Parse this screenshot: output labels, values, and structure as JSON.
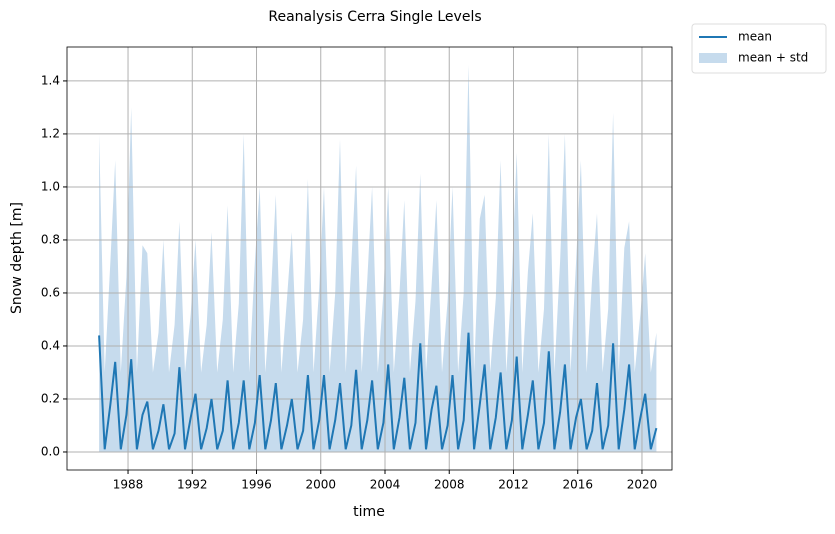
{
  "chart_data": {
    "type": "line",
    "title": "Reanalysis Cerra Single Levels",
    "x_label": "time",
    "y_label": "Snow depth [m]",
    "x": [
      1986.2,
      1986.55,
      1986.9,
      1987.2,
      1987.55,
      1987.9,
      1988.2,
      1988.55,
      1988.9,
      1989.2,
      1989.55,
      1989.9,
      1990.2,
      1990.55,
      1990.9,
      1991.2,
      1991.55,
      1991.9,
      1992.2,
      1992.55,
      1992.9,
      1993.2,
      1993.55,
      1993.9,
      1994.2,
      1994.55,
      1994.9,
      1995.2,
      1995.55,
      1995.9,
      1996.2,
      1996.55,
      1996.9,
      1997.2,
      1997.55,
      1997.9,
      1998.2,
      1998.55,
      1998.9,
      1999.2,
      1999.55,
      1999.9,
      2000.2,
      2000.55,
      2000.9,
      2001.2,
      2001.55,
      2001.9,
      2002.2,
      2002.55,
      2002.9,
      2003.2,
      2003.55,
      2003.9,
      2004.2,
      2004.55,
      2004.9,
      2005.2,
      2005.55,
      2005.9,
      2006.2,
      2006.55,
      2006.9,
      2007.2,
      2007.55,
      2007.9,
      2008.2,
      2008.55,
      2008.9,
      2009.2,
      2009.55,
      2009.9,
      2010.2,
      2010.55,
      2010.9,
      2011.2,
      2011.55,
      2011.9,
      2012.2,
      2012.55,
      2012.9,
      2013.2,
      2013.55,
      2013.9,
      2014.2,
      2014.55,
      2014.9,
      2015.2,
      2015.55,
      2015.9,
      2016.2,
      2016.55,
      2016.9,
      2017.2,
      2017.55,
      2017.9,
      2018.2,
      2018.55,
      2018.9,
      2019.2,
      2019.55,
      2019.9,
      2020.2,
      2020.55,
      2020.9
    ],
    "series": [
      {
        "name": "mean + std",
        "kind": "area",
        "color": "#c6dbed",
        "values": [
          1.2,
          0.3,
          0.72,
          1.1,
          0.3,
          0.66,
          1.3,
          0.3,
          0.78,
          0.75,
          0.3,
          0.45,
          0.8,
          0.3,
          0.48,
          0.87,
          0.3,
          0.52,
          0.8,
          0.3,
          0.48,
          0.83,
          0.3,
          0.5,
          0.93,
          0.3,
          0.56,
          1.2,
          0.3,
          0.72,
          1.0,
          0.3,
          0.6,
          0.97,
          0.3,
          0.58,
          0.83,
          0.3,
          0.5,
          1.03,
          0.3,
          0.62,
          1.0,
          0.3,
          0.6,
          1.18,
          0.3,
          0.71,
          1.08,
          0.3,
          0.65,
          1.0,
          0.3,
          0.6,
          1.0,
          0.3,
          0.6,
          0.95,
          0.3,
          0.57,
          1.05,
          0.3,
          0.63,
          0.95,
          0.3,
          0.57,
          1.0,
          0.3,
          0.6,
          1.46,
          0.3,
          0.88,
          0.97,
          0.3,
          0.58,
          1.1,
          0.3,
          0.66,
          1.13,
          0.3,
          0.68,
          0.9,
          0.3,
          0.54,
          1.2,
          0.3,
          0.72,
          1.2,
          0.3,
          0.72,
          1.1,
          0.3,
          0.66,
          0.9,
          0.3,
          0.54,
          1.28,
          0.3,
          0.77,
          0.87,
          0.3,
          0.52,
          0.75,
          0.3,
          0.45
        ]
      },
      {
        "name": "mean",
        "kind": "line",
        "color": "#1f77b4",
        "values": [
          0.44,
          0.01,
          0.18,
          0.34,
          0.01,
          0.14,
          0.35,
          0.01,
          0.14,
          0.19,
          0.01,
          0.08,
          0.18,
          0.01,
          0.07,
          0.32,
          0.01,
          0.13,
          0.22,
          0.01,
          0.09,
          0.2,
          0.01,
          0.08,
          0.27,
          0.01,
          0.11,
          0.27,
          0.01,
          0.11,
          0.29,
          0.01,
          0.12,
          0.26,
          0.01,
          0.1,
          0.2,
          0.01,
          0.08,
          0.29,
          0.01,
          0.12,
          0.29,
          0.01,
          0.12,
          0.26,
          0.01,
          0.1,
          0.31,
          0.01,
          0.12,
          0.27,
          0.01,
          0.11,
          0.33,
          0.01,
          0.13,
          0.28,
          0.01,
          0.11,
          0.41,
          0.01,
          0.16,
          0.25,
          0.01,
          0.1,
          0.29,
          0.01,
          0.12,
          0.45,
          0.01,
          0.18,
          0.33,
          0.01,
          0.13,
          0.3,
          0.01,
          0.12,
          0.36,
          0.01,
          0.14,
          0.27,
          0.01,
          0.11,
          0.38,
          0.01,
          0.15,
          0.33,
          0.01,
          0.13,
          0.2,
          0.01,
          0.08,
          0.26,
          0.01,
          0.1,
          0.41,
          0.01,
          0.16,
          0.33,
          0.01,
          0.13,
          0.22,
          0.01,
          0.09
        ]
      }
    ],
    "xlim": [
      1984.2,
      2021.87
    ],
    "xticks": [
      1988,
      1992,
      1996,
      2000,
      2004,
      2008,
      2012,
      2016,
      2020
    ],
    "ylim": [
      -0.068,
      1.528
    ],
    "yticks": [
      {
        "value": 0,
        "label": "0.0"
      },
      0.2,
      0.4,
      0.6,
      0.8,
      {
        "value": 1,
        "label": "1.0"
      },
      1.2,
      1.4
    ],
    "grid": true,
    "legend": "outside-top-right"
  }
}
